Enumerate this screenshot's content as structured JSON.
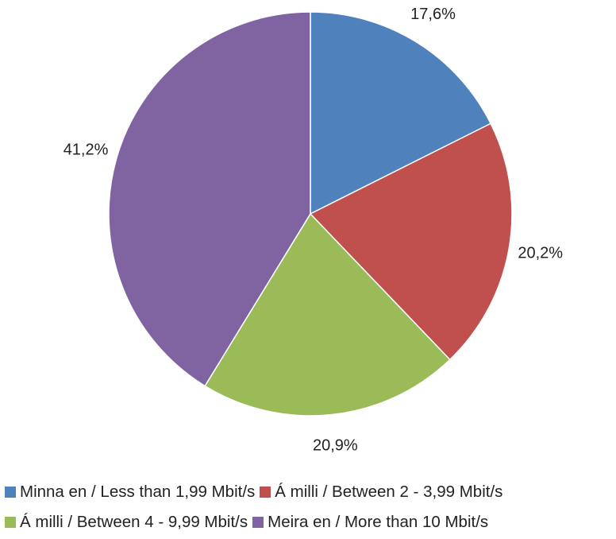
{
  "chart_data": {
    "type": "pie",
    "title": "",
    "start_angle_deg": 0,
    "direction": "clockwise",
    "slices": [
      {
        "label": "Minna en / Less than 1,99 Mbit/s",
        "value": 17.6,
        "display": "17,6%",
        "color": "#4F81BD"
      },
      {
        "label": "Á milli / Between 2 - 3,99 Mbit/s",
        "value": 20.2,
        "display": "20,2%",
        "color": "#C0504D"
      },
      {
        "label": "Á milli / Between 4 - 9,99 Mbit/s",
        "value": 20.9,
        "display": "20,9%",
        "color": "#9BBB59"
      },
      {
        "label": "Meira en / More than 10 Mbit/s",
        "value": 41.2,
        "display": "41,2%",
        "color": "#8064A2"
      }
    ],
    "legend_position": "bottom"
  }
}
